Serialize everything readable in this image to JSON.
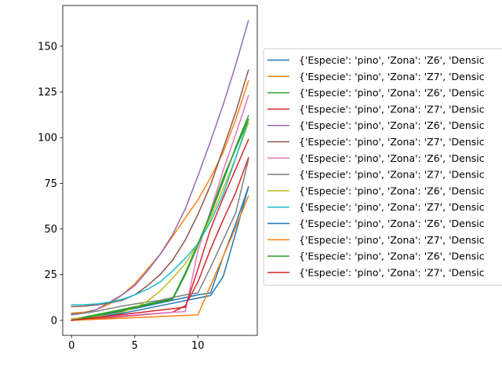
{
  "chart_data": {
    "type": "line",
    "title": "",
    "xlabel": "",
    "ylabel": "",
    "xlim": [
      -0.7,
      14.7
    ],
    "ylim": [
      -8.2,
      172.3
    ],
    "xticks": [
      0,
      5,
      10
    ],
    "yticks": [
      0,
      25,
      50,
      75,
      100,
      125,
      150
    ],
    "grid": false,
    "legend_position": "right",
    "x": [
      0,
      1,
      2,
      3,
      4,
      5,
      6,
      7,
      8,
      9,
      10,
      11,
      12,
      13,
      14
    ],
    "series": [
      {
        "name": "{'Especie': 'pino', 'Zona': 'Z6', 'Densic",
        "color": "#1f77b4",
        "values": [
          0,
          0.8,
          2,
          3.5,
          5,
          6.5,
          8,
          9.5,
          11,
          12.5,
          14,
          15,
          35,
          53,
          73
        ]
      },
      {
        "name": "{'Especie': 'pino', 'Zona': 'Z7', 'Densic",
        "color": "#ff7f0e",
        "values": [
          4,
          4.5,
          6,
          9,
          14,
          20,
          28,
          36,
          46,
          56,
          66,
          78,
          92,
          110,
          131
        ]
      },
      {
        "name": "{'Especie': 'pino', 'Zona': 'Z6', 'Densic",
        "color": "#2ca02c",
        "values": [
          0.5,
          1.8,
          3.2,
          4.6,
          6,
          7.5,
          9,
          10.5,
          12,
          26,
          42,
          58,
          76,
          95,
          112
        ]
      },
      {
        "name": "{'Especie': 'pino', 'Zona': 'Z7', 'Densic",
        "color": "#d62728",
        "values": [
          0,
          0.5,
          1,
          1.5,
          2.1,
          2.7,
          3.3,
          3.9,
          4.5,
          8,
          21,
          39,
          55,
          70,
          89
        ]
      },
      {
        "name": "{'Especie': 'pino', 'Zona': 'Z6', 'Densic",
        "color": "#9467bd",
        "values": [
          3,
          4,
          6,
          10,
          14,
          19,
          27,
          36,
          47,
          61,
          79,
          98,
          118,
          140,
          164
        ]
      },
      {
        "name": "{'Especie': 'pino', 'Zona': 'Z7', 'Densic",
        "color": "#8c564b",
        "values": [
          7.5,
          7.8,
          8.5,
          9.5,
          11,
          14,
          19,
          25,
          33,
          44,
          58,
          74,
          94,
          114,
          137
        ]
      },
      {
        "name": "{'Especie': 'pino', 'Zona': 'Z6', 'Densic",
        "color": "#e377c2",
        "values": [
          0.5,
          1,
          1.5,
          2,
          2.5,
          3,
          3.5,
          4,
          4.4,
          4.8,
          38,
          60,
          82,
          102,
          123
        ]
      },
      {
        "name": "{'Especie': 'pino', 'Zona': 'Z7', 'Densic",
        "color": "#7f7f7f",
        "values": [
          3.5,
          4,
          5,
          6.5,
          7.8,
          9,
          10,
          11,
          12.5,
          14,
          15,
          29,
          44,
          59,
          88
        ]
      },
      {
        "name": "{'Especie': 'pino', 'Zona': 'Z6', 'Densic",
        "color": "#bcbd22",
        "values": [
          1,
          1.3,
          2,
          3,
          4.5,
          7,
          10.5,
          16,
          23,
          31,
          42,
          56,
          72,
          89,
          108
        ]
      },
      {
        "name": "{'Especie': 'pino', 'Zona': 'Z7', 'Densic",
        "color": "#17becf",
        "values": [
          8.5,
          8.6,
          9,
          10,
          11.5,
          14,
          17,
          21,
          27,
          34,
          42,
          54,
          69,
          89,
          110
        ]
      },
      {
        "name": "{'Especie': 'pino', 'Zona': 'Z6', 'Densic",
        "color": "#1f77b4",
        "values": [
          0,
          0.7,
          1.6,
          2.7,
          3.9,
          5.2,
          6.6,
          8,
          9.4,
          10.8,
          12.2,
          13.6,
          24,
          48,
          73
        ]
      },
      {
        "name": "{'Especie': 'pino', 'Zona': 'Z7', 'Densic",
        "color": "#ff7f0e",
        "values": [
          0,
          0.3,
          0.6,
          0.9,
          1.2,
          1.5,
          1.8,
          2.1,
          2.4,
          2.7,
          3,
          19,
          35,
          51,
          68
        ]
      },
      {
        "name": "{'Especie': 'pino', 'Zona': 'Z6', 'Densic",
        "color": "#2ca02c",
        "values": [
          0,
          1.3,
          2.7,
          4.1,
          5.5,
          7,
          8.5,
          10,
          11.5,
          25,
          41,
          59,
          78,
          94,
          110
        ]
      },
      {
        "name": "{'Especie': 'pino', 'Zona': 'Z7', 'Densic",
        "color": "#d62728",
        "values": [
          0,
          0.8,
          1.6,
          2.4,
          3.2,
          4,
          4.8,
          5.6,
          6.4,
          7.2,
          28,
          50,
          67,
          83,
          99
        ]
      }
    ]
  }
}
